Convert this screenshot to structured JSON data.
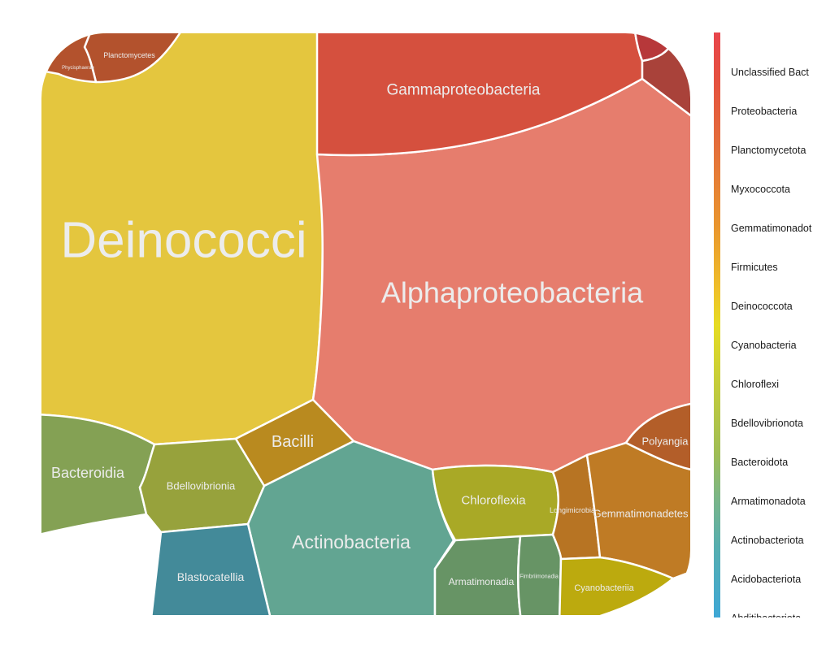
{
  "chart_data": {
    "type": "voronoi-treemap",
    "cells": [
      {
        "label": "Deinococci",
        "color": "#e4c63e"
      },
      {
        "label": "Alphaproteobacteria",
        "color": "#e67d6d"
      },
      {
        "label": "Gammaproteobacteria",
        "color": "#d5503e"
      },
      {
        "label": "Planctomycetes",
        "color": "#b3522d"
      },
      {
        "label": "Phycisphaerae",
        "color": "#b3522d"
      },
      {
        "label": "Bacteroidia",
        "color": "#84a154"
      },
      {
        "label": "Bdellovibrionia",
        "color": "#97a23c"
      },
      {
        "label": "Bacilli",
        "color": "#b98a1f"
      },
      {
        "label": "Actinobacteria",
        "color": "#62a592"
      },
      {
        "label": "Blastocatellia",
        "color": "#438a99"
      },
      {
        "label": "Chloroflexia",
        "color": "#a9a926"
      },
      {
        "label": "Armatimonadia",
        "color": "#679465"
      },
      {
        "label": "Fimbriimonadia",
        "color": "#679465"
      },
      {
        "label": "Longimicrobia",
        "color": "#b77423"
      },
      {
        "label": "Gemmatimonadetes",
        "color": "#bf7b25"
      },
      {
        "label": "Polyangia",
        "color": "#b35e29"
      },
      {
        "label": "Cyanobacteriia",
        "color": "#bcaa0e"
      },
      {
        "label": "",
        "color": "#b7383a"
      },
      {
        "label": "",
        "color": "#a9423a"
      }
    ],
    "legend": {
      "type": "gradient",
      "entries": [
        "Unclassified Bact",
        "Proteobacteria",
        "Planctomycetota",
        "Myxococcota",
        "Gemmatimonadot",
        "Firmicutes",
        "Deinococcota",
        "Cyanobacteria",
        "Chloroflexi",
        "Bdellovibrionota",
        "Bacteroidota",
        "Armatimonadota",
        "Actinobacteriota",
        "Acidobacteriota",
        "Abditibacteriota"
      ]
    }
  }
}
